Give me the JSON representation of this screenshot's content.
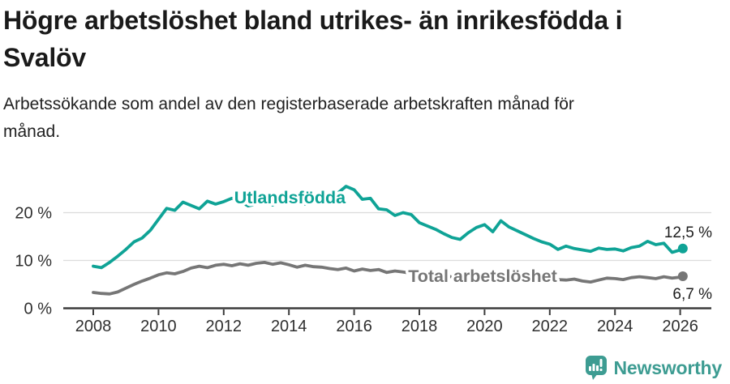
{
  "header": {
    "title": "Högre arbetslöshet bland utrikes- än inrikesfödda i Svalöv",
    "subtitle": "Arbetssökande som andel av den registerbaserade arbetskraften månad för månad."
  },
  "chart_data": {
    "type": "line",
    "title": "Högre arbetslöshet bland utrikes- än inrikesfödda i Svalöv",
    "subtitle": "Arbetssökande som andel av den registerbaserade arbetskraften månad för månad.",
    "xlabel": "",
    "ylabel": "",
    "x_unit": "year",
    "x_start": 2008,
    "x_step": 0.25,
    "x_end": 2026.08,
    "xlim": [
      2007.1,
      2026.95
    ],
    "ylim": [
      0,
      27.5
    ],
    "grid": "horizontal",
    "legend": "inline-line-labels",
    "yticks": [
      {
        "v": 0,
        "label": "0 %"
      },
      {
        "v": 10,
        "label": "10 %"
      },
      {
        "v": 20,
        "label": "20 %"
      }
    ],
    "xticks": [
      {
        "v": 2008,
        "label": "2008"
      },
      {
        "v": 2010,
        "label": "2010"
      },
      {
        "v": 2012,
        "label": "2012"
      },
      {
        "v": 2014,
        "label": "2014"
      },
      {
        "v": 2016,
        "label": "2016"
      },
      {
        "v": 2018,
        "label": "2018"
      },
      {
        "v": 2020,
        "label": "2020"
      },
      {
        "v": 2022,
        "label": "2022"
      },
      {
        "v": 2024,
        "label": "2024"
      },
      {
        "v": 2026,
        "label": "2026"
      }
    ],
    "series": [
      {
        "id": "utlandsfodda",
        "name": "Utlandsfödda",
        "color": "#0FA396",
        "label": {
          "text": "Utlandsfödda",
          "x": 2014.03,
          "y": 21.95
        },
        "end_label": "12,5 %",
        "end_label_pos": "above",
        "end_value": 12.5,
        "values": [
          8.8,
          8.5,
          9.6,
          10.9,
          12.3,
          13.9,
          14.7,
          16.3,
          18.6,
          20.9,
          20.5,
          22.2,
          21.5,
          20.8,
          22.4,
          21.8,
          22.3,
          23.0,
          22.4,
          21.4,
          21.8,
          22.3,
          21.6,
          22.0,
          21.9,
          22.4,
          21.8,
          22.6,
          22.8,
          23.4,
          24.1,
          25.5,
          24.8,
          22.8,
          23.0,
          20.8,
          20.6,
          19.4,
          20.0,
          19.6,
          17.9,
          17.2,
          16.5,
          15.6,
          14.8,
          14.4,
          15.8,
          16.9,
          17.5,
          16.0,
          18.3,
          17.0,
          16.2,
          15.4,
          14.6,
          13.9,
          13.4,
          12.3,
          13.0,
          12.5,
          12.2,
          11.9,
          12.6,
          12.3,
          12.4,
          12.0,
          12.7,
          13.0,
          14.0,
          13.3,
          13.6,
          11.7,
          12.2,
          12.5
        ]
      },
      {
        "id": "total",
        "name": "Total arbetslöshet",
        "color": "#767676",
        "label": {
          "text": "Total arbetslöshet",
          "x": 2019.94,
          "y": 5.5
        },
        "end_label": "6,7 %",
        "end_label_pos": "below",
        "end_value": 6.7,
        "values": [
          3.3,
          3.1,
          3.0,
          3.4,
          4.2,
          5.0,
          5.7,
          6.3,
          7.0,
          7.4,
          7.2,
          7.7,
          8.4,
          8.8,
          8.5,
          9.0,
          9.2,
          8.9,
          9.3,
          9.0,
          9.4,
          9.6,
          9.2,
          9.5,
          9.1,
          8.6,
          9.0,
          8.7,
          8.6,
          8.3,
          8.1,
          8.4,
          7.8,
          8.2,
          7.9,
          8.1,
          7.5,
          7.8,
          7.6,
          7.3,
          7.1,
          6.9,
          6.8,
          6.7,
          6.6,
          6.5,
          6.6,
          6.8,
          7.1,
          7.5,
          7.3,
          7.1,
          6.9,
          6.7,
          6.5,
          6.3,
          6.1,
          6.0,
          5.9,
          6.1,
          5.7,
          5.5,
          5.9,
          6.3,
          6.2,
          6.0,
          6.4,
          6.6,
          6.4,
          6.2,
          6.6,
          6.3,
          6.5,
          6.7
        ]
      }
    ],
    "colors": {
      "gridline": "#dcdcdc",
      "axis": "#3b3b3b",
      "tick_text": "#2f2f2f",
      "value_label_text": "#1d1d1d"
    }
  },
  "branding": {
    "name": "Newsworthy",
    "color": "#3d9c92",
    "icon": "newsworthy-chart-bubble-icon"
  }
}
